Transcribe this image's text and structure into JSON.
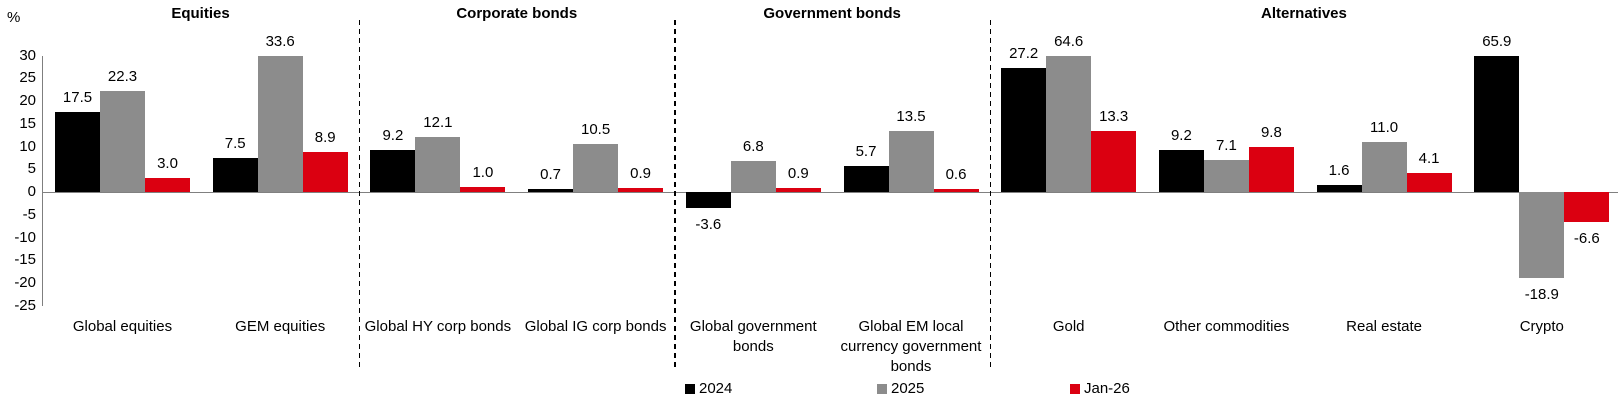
{
  "chart_data": {
    "type": "bar",
    "title": "",
    "unit_label": "%",
    "xlabel": "",
    "ylabel": "%",
    "ylim": [
      -25,
      30
    ],
    "ytick_step": 5,
    "ytick_labels": [
      "30",
      "25",
      "20",
      "15",
      "10",
      "5",
      "0",
      "-5",
      "-10",
      "-15",
      "-20",
      "-25"
    ],
    "grid": false,
    "clip_values_at_ymax": true,
    "legend_position": "bottom",
    "series": [
      {
        "name": "2024",
        "color": "#000000"
      },
      {
        "name": "2025",
        "color": "#8c8c8c"
      },
      {
        "name": "Jan-26",
        "color": "#db0011"
      }
    ],
    "sections": [
      {
        "title": "Equities",
        "categories": [
          {
            "label": "Global equities",
            "values": [
              17.5,
              22.3,
              3.0
            ]
          },
          {
            "label": "GEM equities",
            "values": [
              7.5,
              33.6,
              8.9
            ]
          }
        ]
      },
      {
        "title": "Corporate bonds",
        "categories": [
          {
            "label": "Global HY corp bonds",
            "values": [
              9.2,
              12.1,
              1.0
            ]
          },
          {
            "label": "Global IG corp bonds",
            "values": [
              0.7,
              10.5,
              0.9
            ]
          }
        ]
      },
      {
        "title": "Government bonds",
        "categories": [
          {
            "label": "Global government\nbonds",
            "values": [
              -3.6,
              6.8,
              0.9
            ]
          },
          {
            "label": "Global EM local\ncurrency government\nbonds",
            "values": [
              5.7,
              13.5,
              0.6
            ]
          }
        ]
      },
      {
        "title": "Alternatives",
        "categories": [
          {
            "label": "Gold",
            "values": [
              27.2,
              64.6,
              13.3
            ]
          },
          {
            "label": "Other commodities",
            "values": [
              9.2,
              7.1,
              9.8
            ]
          },
          {
            "label": "Real estate",
            "values": [
              1.6,
              11.0,
              4.1
            ]
          },
          {
            "label": "Crypto",
            "values": [
              65.9,
              -18.9,
              -6.6
            ]
          }
        ]
      }
    ]
  },
  "colors": {
    "background": "#ffffff",
    "axis_line": "#7f7f7f",
    "zero_line": "#808080",
    "separator": "#000000",
    "text": "#000000",
    "series_2024": "#000000",
    "series_2025": "#8c8c8c",
    "series_jan26": "#db0011"
  }
}
